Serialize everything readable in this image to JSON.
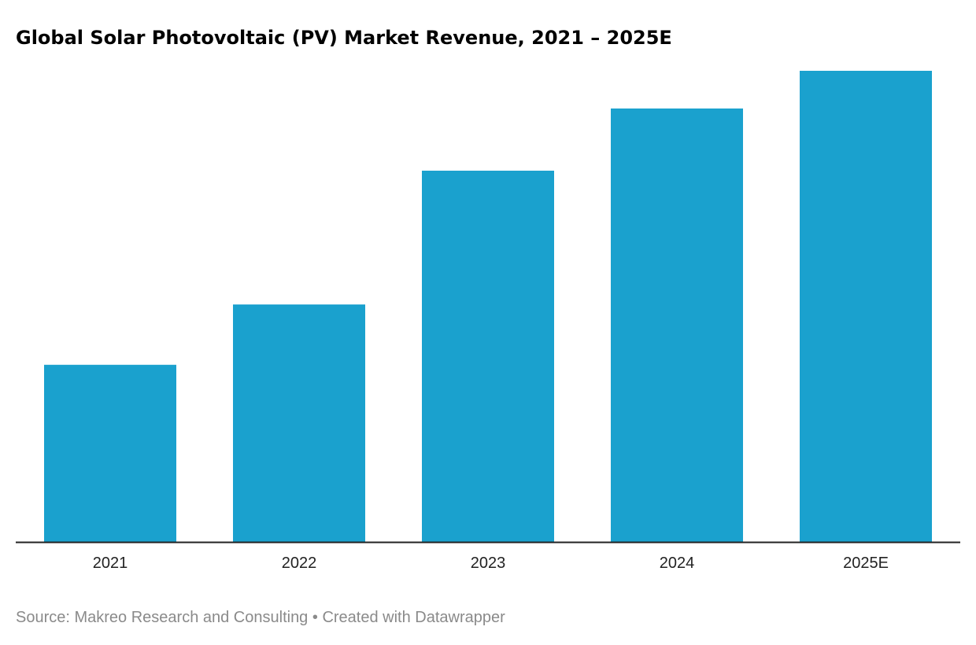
{
  "chart_data": {
    "type": "bar",
    "title": "Global Solar Photovoltaic (PV) Market Revenue, 2021 – 2025E",
    "categories": [
      "2021",
      "2022",
      "2023",
      "2024",
      "2025E"
    ],
    "values": [
      37.6,
      50.4,
      78.8,
      92.0,
      100
    ],
    "xlabel": "",
    "ylabel": "",
    "ylim": [
      0,
      100
    ],
    "grid": false,
    "bar_color": "#1aa1ce",
    "axis_color": "#222222"
  },
  "footer": {
    "source": "Source: Makreo Research and Consulting",
    "separator": " • ",
    "credit": "Created with Datawrapper"
  }
}
